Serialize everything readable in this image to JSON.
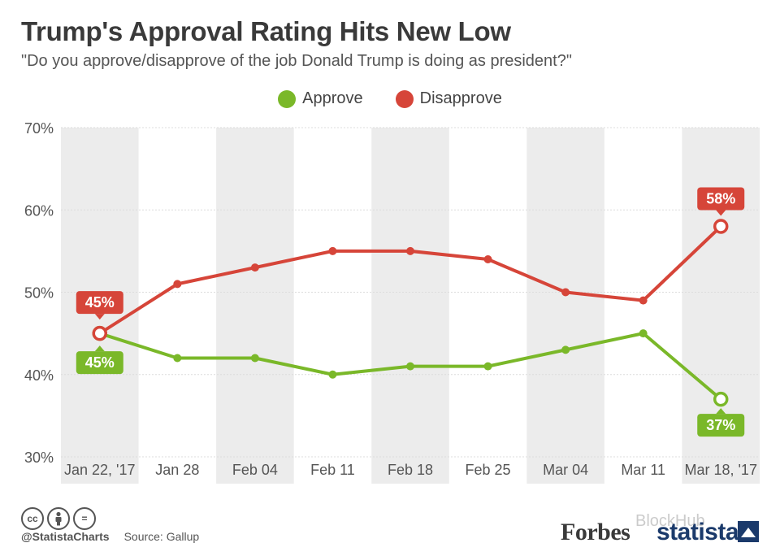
{
  "header": {
    "title": "Trump's Approval Rating Hits New Low",
    "subtitle": "\"Do you approve/disapprove of the job Donald Trump is doing as president?\""
  },
  "legend": [
    {
      "label": "Approve",
      "color": "#7ab829"
    },
    {
      "label": "Disapprove",
      "color": "#d64539"
    }
  ],
  "chart_data": {
    "type": "line",
    "title": "Trump's Approval Rating Hits New Low",
    "categories": [
      "Jan 22, '17",
      "Jan 28",
      "Feb 04",
      "Feb 11",
      "Feb 18",
      "Feb 25",
      "Mar 04",
      "Mar 11",
      "Mar 18, '17"
    ],
    "series": [
      {
        "name": "Approve",
        "color": "#7ab829",
        "values": [
          45,
          42,
          42,
          40,
          41,
          41,
          43,
          45,
          37
        ]
      },
      {
        "name": "Disapprove",
        "color": "#d64539",
        "values": [
          45,
          51,
          53,
          55,
          55,
          54,
          50,
          49,
          58
        ]
      }
    ],
    "ylim": [
      30,
      70
    ],
    "yticks": [
      "30%",
      "40%",
      "50%",
      "60%",
      "70%"
    ],
    "yticks_values": [
      30,
      40,
      50,
      60,
      70
    ],
    "annotations": {
      "first": {
        "approve": "45%",
        "disapprove": "45%"
      },
      "last": {
        "approve": "37%",
        "disapprove": "58%"
      }
    },
    "xlabel": "",
    "ylabel": ""
  },
  "footer": {
    "handle": "@StatistaCharts",
    "source": "Source: Gallup",
    "forbes": "Forbes",
    "statista": "statista",
    "watermark": "BlockHub",
    "cc_icons": [
      "cc",
      "by",
      "="
    ]
  }
}
